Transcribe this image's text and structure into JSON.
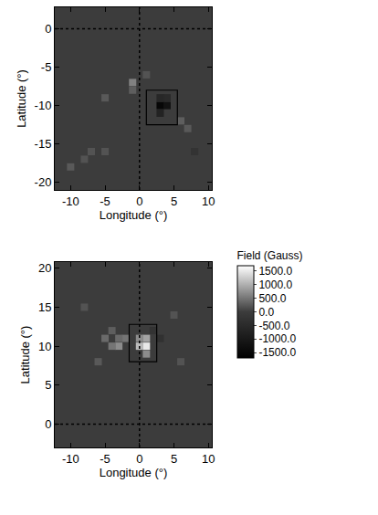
{
  "chart_data": {
    "type": "heatmap",
    "color_bar": {
      "title": "Field (Gauss)",
      "clim": [
        -1700,
        1700
      ],
      "ticks": [
        {
          "value": 1500,
          "label": "1500.0"
        },
        {
          "value": 1000,
          "label": "1000.0"
        },
        {
          "value": 500,
          "label": "500.0"
        },
        {
          "value": 0,
          "label": "0.0"
        },
        {
          "value": -500,
          "label": "-500.0"
        },
        {
          "value": -1000,
          "label": "-1000.0"
        },
        {
          "value": -1500,
          "label": "-1500.0"
        }
      ]
    },
    "panels": [
      {
        "x_label": "Longitude (°)",
        "y_label": "Latitude (°)",
        "xlim": [
          -12.3,
          10.5
        ],
        "ylim": [
          -21,
          2.8
        ],
        "xticks": [
          -10,
          -5,
          0,
          5,
          10
        ],
        "yticks": [
          0,
          -5,
          -10,
          -15,
          -20
        ],
        "cross": {
          "x": 0,
          "y": 0
        },
        "box": {
          "x": [
            1,
            5.5
          ],
          "y": [
            -12.5,
            -8
          ]
        },
        "cells": {
          "x": [
            3,
            4,
            3,
            4,
            3,
            -1,
            -1,
            -5,
            6,
            7,
            -7,
            -8,
            -5,
            8,
            -10,
            1
          ],
          "y": [
            -10,
            -10,
            -11,
            -9,
            -9,
            -7,
            -8,
            -9,
            -12,
            -13,
            -16,
            -17,
            -16,
            -16,
            -18,
            -6
          ],
          "z": [
            -1500,
            -1200,
            -700,
            -500,
            -600,
            600,
            300,
            250,
            300,
            250,
            200,
            200,
            200,
            -250,
            250,
            200
          ]
        }
      },
      {
        "x_label": "Longitude (°)",
        "y_label": "Latitude (°)",
        "xlim": [
          -12.3,
          10.5
        ],
        "ylim": [
          -3,
          20.8
        ],
        "xticks": [
          -10,
          -5,
          0,
          5,
          10
        ],
        "yticks": [
          0,
          5,
          10,
          15,
          20
        ],
        "cross": {
          "x": 0,
          "y": 0
        },
        "box": {
          "x": [
            -1.5,
            2.5
          ],
          "y": [
            8,
            12.8
          ]
        },
        "cells": {
          "x": [
            1,
            0,
            1,
            0,
            1,
            -3,
            -4,
            -5,
            -2,
            -3,
            -4,
            -6,
            5,
            6,
            -8,
            3,
            2
          ],
          "y": [
            10,
            10,
            11,
            11,
            9,
            10,
            10,
            11,
            11,
            11,
            12,
            8,
            14,
            8,
            15,
            11,
            12
          ],
          "z": [
            1500,
            1100,
            900,
            700,
            700,
            700,
            500,
            400,
            500,
            400,
            300,
            250,
            200,
            200,
            200,
            -300,
            -250
          ]
        }
      }
    ]
  }
}
